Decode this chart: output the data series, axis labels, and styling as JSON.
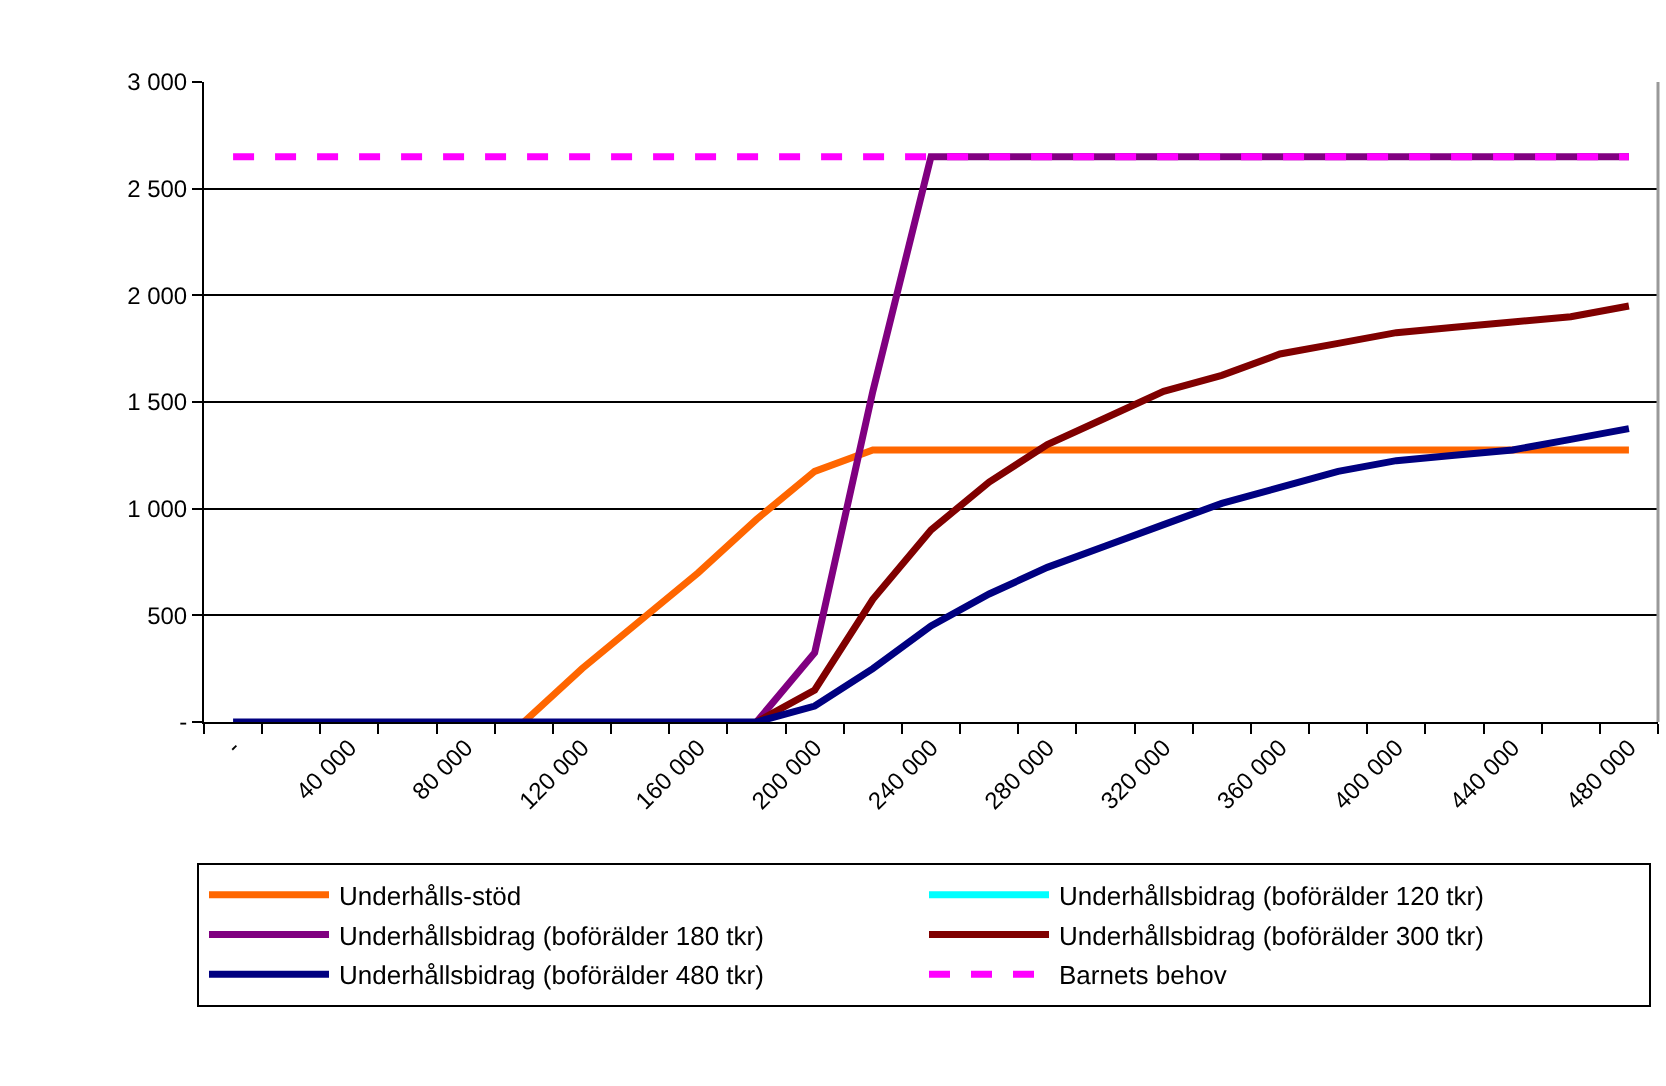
{
  "chart_data": {
    "type": "line",
    "categories": [
      "-",
      null,
      "40 000",
      null,
      "80 000",
      null,
      "120 000",
      null,
      "160 000",
      null,
      "200 000",
      null,
      "240 000",
      null,
      "280 000",
      null,
      "320 000",
      null,
      "360 000",
      null,
      "400 000",
      null,
      "440 000",
      null,
      "480 000"
    ],
    "series": [
      {
        "name": "Underhålls-stöd",
        "color": "#ff6600",
        "values": [
          null,
          null,
          null,
          null,
          null,
          0,
          250,
          475,
          700,
          950,
          1175,
          1275,
          1275,
          1275,
          1275,
          1275,
          1275,
          1275,
          1275,
          1275,
          1275,
          1275,
          1275,
          1275,
          1275
        ]
      },
      {
        "name": "Underhållsbidrag (boförälder 120 tkr)",
        "color": "#00ffff",
        "values": [
          null,
          null,
          null,
          null,
          null,
          null,
          null,
          null,
          null,
          null,
          null,
          null,
          null,
          null,
          null,
          null,
          null,
          null,
          null,
          null,
          null,
          null,
          null,
          null,
          null
        ]
      },
      {
        "name": "Underhållsbidrag (boförälder 180 tkr)",
        "color": "#800080",
        "values": [
          null,
          null,
          null,
          null,
          null,
          null,
          null,
          null,
          null,
          0,
          325,
          1550,
          2650,
          2650,
          2650,
          2650,
          2650,
          2650,
          2650,
          2650,
          2650,
          2650,
          2650,
          2650,
          2650
        ]
      },
      {
        "name": "Underhållsbidrag (boförälder 300 tkr)",
        "color": "#800000",
        "values": [
          null,
          null,
          null,
          null,
          null,
          null,
          null,
          null,
          null,
          0,
          150,
          575,
          900,
          1125,
          1300,
          1425,
          1550,
          1625,
          1725,
          1775,
          1825,
          1850,
          1875,
          1900,
          1950
        ]
      },
      {
        "name": "Underhållsbidrag (boförälder 480 tkr)",
        "color": "#000080",
        "values": [
          0,
          0,
          0,
          0,
          0,
          0,
          0,
          0,
          0,
          0,
          75,
          250,
          450,
          600,
          725,
          825,
          925,
          1025,
          1100,
          1175,
          1225,
          1250,
          1275,
          1325,
          1375
        ]
      },
      {
        "name": "Barnets behov",
        "color": "#ff00ff",
        "line_style": "dashed",
        "values": [
          2650,
          2650,
          2650,
          2650,
          2650,
          2650,
          2650,
          2650,
          2650,
          2650,
          2650,
          2650,
          2650,
          2650,
          2650,
          2650,
          2650,
          2650,
          2650,
          2650,
          2650,
          2650,
          2650,
          2650,
          2650
        ]
      }
    ],
    "ylim": [
      0,
      3000
    ],
    "yticks": [
      {
        "value": 0,
        "label": "-"
      },
      500,
      {
        "value": 1000,
        "label": "1 000"
      },
      {
        "value": 1500,
        "label": "1 500"
      },
      {
        "value": 2000,
        "label": "2 000"
      },
      {
        "value": 2500,
        "label": "2 500"
      },
      {
        "value": 3000,
        "label": "3 000"
      }
    ],
    "grid": "y",
    "legend": "bottom",
    "marker": "none",
    "line_style": "solid"
  }
}
